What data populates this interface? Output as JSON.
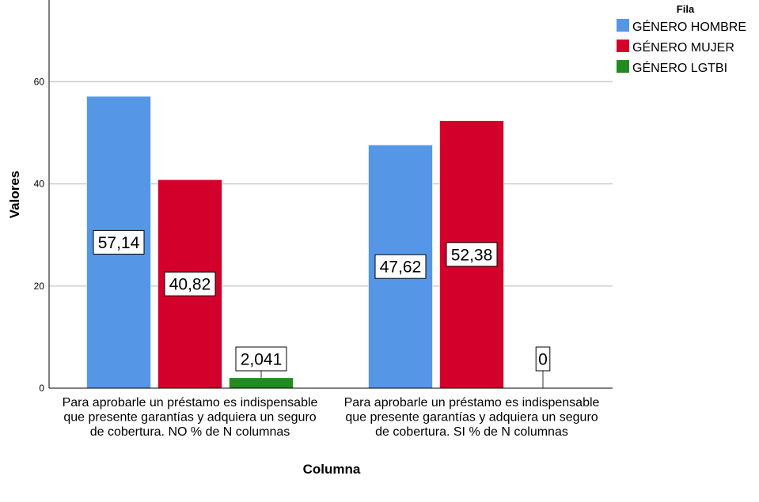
{
  "chart_data": {
    "type": "bar",
    "title": "",
    "xlabel": "Columna",
    "ylabel": "Valores",
    "ylim": [
      0,
      76
    ],
    "yticks": [
      0,
      20,
      40,
      60
    ],
    "grid": true,
    "legend_position": "top-right",
    "legend_title": "Fila",
    "categories": [
      [
        "Para aprobarle un préstamo es indispensable",
        "que presente garantías y  adquiera un seguro",
        "de cobertura. NO % de N columnas"
      ],
      [
        "Para aprobarle un préstamo es indispensable",
        "que presente garantías y  adquiera un seguro",
        "de cobertura. SI % de N columnas"
      ]
    ],
    "series": [
      {
        "name": "GÉNERO HOMBRE",
        "color": "#5596e6",
        "values": [
          57.14,
          47.62
        ],
        "labels": [
          "57,14",
          "47,62"
        ]
      },
      {
        "name": "GÉNERO MUJER",
        "color": "#d3002b",
        "values": [
          40.82,
          52.38
        ],
        "labels": [
          "40,82",
          "52,38"
        ]
      },
      {
        "name": "GÉNERO LGTBI",
        "color": "#218b21",
        "values": [
          2.041,
          0
        ],
        "labels": [
          "2,041",
          "0"
        ]
      }
    ]
  }
}
